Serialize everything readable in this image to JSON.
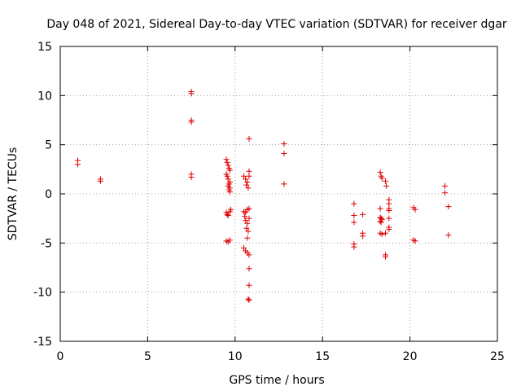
{
  "chart_data": {
    "type": "scatter",
    "title": "Day 048 of 2021, Sidereal Day-to-day VTEC variation (SDTVAR) for receiver dgar",
    "xlabel": "GPS time / hours",
    "ylabel": "SDTVAR / TECUs",
    "xlim": [
      0,
      25
    ],
    "ylim": [
      -15,
      15
    ],
    "x_ticks": [
      0,
      5,
      10,
      15,
      20,
      25
    ],
    "y_ticks": [
      -15,
      -10,
      -5,
      0,
      5,
      10,
      15
    ],
    "x_tick_labels": [
      "0",
      "5",
      "10",
      "15",
      "20",
      "25"
    ],
    "y_tick_labels": [
      "-15",
      "-10",
      "-5",
      "0",
      "5",
      "10",
      "15"
    ],
    "grid": true,
    "marker": "+",
    "color": "#e00000",
    "series": [
      {
        "name": "SDTVAR",
        "points": [
          [
            1.0,
            3.4
          ],
          [
            1.0,
            3.0
          ],
          [
            2.3,
            1.5
          ],
          [
            2.3,
            1.3
          ],
          [
            7.5,
            10.4
          ],
          [
            7.5,
            10.2
          ],
          [
            7.5,
            7.5
          ],
          [
            7.5,
            7.3
          ],
          [
            7.5,
            2.0
          ],
          [
            7.5,
            1.7
          ],
          [
            9.5,
            3.5
          ],
          [
            9.55,
            3.2
          ],
          [
            9.6,
            2.9
          ],
          [
            9.65,
            2.6
          ],
          [
            9.7,
            2.4
          ],
          [
            9.5,
            2.0
          ],
          [
            9.55,
            1.8
          ],
          [
            9.6,
            1.5
          ],
          [
            9.7,
            1.2
          ],
          [
            9.65,
            1.0
          ],
          [
            9.6,
            0.8
          ],
          [
            9.7,
            0.6
          ],
          [
            9.65,
            0.4
          ],
          [
            9.7,
            0.2
          ],
          [
            9.5,
            -1.9
          ],
          [
            9.55,
            -2.1
          ],
          [
            9.6,
            -2.2
          ],
          [
            9.7,
            -1.8
          ],
          [
            9.75,
            -1.6
          ],
          [
            9.5,
            -4.8
          ],
          [
            9.6,
            -4.9
          ],
          [
            9.7,
            -4.7
          ],
          [
            10.5,
            1.8
          ],
          [
            10.6,
            1.5
          ],
          [
            10.7,
            1.2
          ],
          [
            10.65,
            0.9
          ],
          [
            10.75,
            0.6
          ],
          [
            10.8,
            1.8
          ],
          [
            10.8,
            2.3
          ],
          [
            10.8,
            5.6
          ],
          [
            10.5,
            -1.8
          ],
          [
            10.55,
            -2.3
          ],
          [
            10.6,
            -2.7
          ],
          [
            10.7,
            -3.0
          ],
          [
            10.65,
            -3.5
          ],
          [
            10.75,
            -3.8
          ],
          [
            10.8,
            -1.5
          ],
          [
            10.7,
            -1.6
          ],
          [
            10.6,
            -1.9
          ],
          [
            10.8,
            -2.5
          ],
          [
            10.7,
            -4.5
          ],
          [
            10.5,
            -5.5
          ],
          [
            10.6,
            -5.8
          ],
          [
            10.7,
            -6.0
          ],
          [
            10.8,
            -6.2
          ],
          [
            10.8,
            -7.6
          ],
          [
            10.8,
            -9.3
          ],
          [
            10.75,
            -10.7
          ],
          [
            10.8,
            -10.8
          ],
          [
            12.8,
            5.1
          ],
          [
            12.8,
            4.1
          ],
          [
            12.8,
            1.0
          ],
          [
            16.8,
            -1.0
          ],
          [
            16.8,
            -2.2
          ],
          [
            16.8,
            -2.9
          ],
          [
            16.8,
            -5.1
          ],
          [
            16.8,
            -5.4
          ],
          [
            17.3,
            -2.1
          ],
          [
            17.3,
            -4.0
          ],
          [
            17.3,
            -4.3
          ],
          [
            18.3,
            2.2
          ],
          [
            18.35,
            1.8
          ],
          [
            18.4,
            1.6
          ],
          [
            18.3,
            -1.5
          ],
          [
            18.3,
            -2.4
          ],
          [
            18.35,
            -2.5
          ],
          [
            18.4,
            -2.6
          ],
          [
            18.3,
            -2.8
          ],
          [
            18.35,
            -2.9
          ],
          [
            18.3,
            -4.0
          ],
          [
            18.4,
            -4.1
          ],
          [
            18.6,
            1.3
          ],
          [
            18.65,
            0.8
          ],
          [
            18.6,
            -4.0
          ],
          [
            18.6,
            -6.2
          ],
          [
            18.6,
            -6.4
          ],
          [
            18.8,
            -0.6
          ],
          [
            18.8,
            -1.0
          ],
          [
            18.8,
            -1.5
          ],
          [
            18.8,
            -1.7
          ],
          [
            18.8,
            -2.5
          ],
          [
            18.8,
            -3.4
          ],
          [
            18.8,
            -3.6
          ],
          [
            20.2,
            -1.4
          ],
          [
            20.3,
            -1.6
          ],
          [
            20.2,
            -4.7
          ],
          [
            20.3,
            -4.8
          ],
          [
            22.0,
            0.8
          ],
          [
            22.0,
            0.1
          ],
          [
            22.2,
            -1.3
          ],
          [
            22.2,
            -4.2
          ]
        ]
      }
    ]
  }
}
